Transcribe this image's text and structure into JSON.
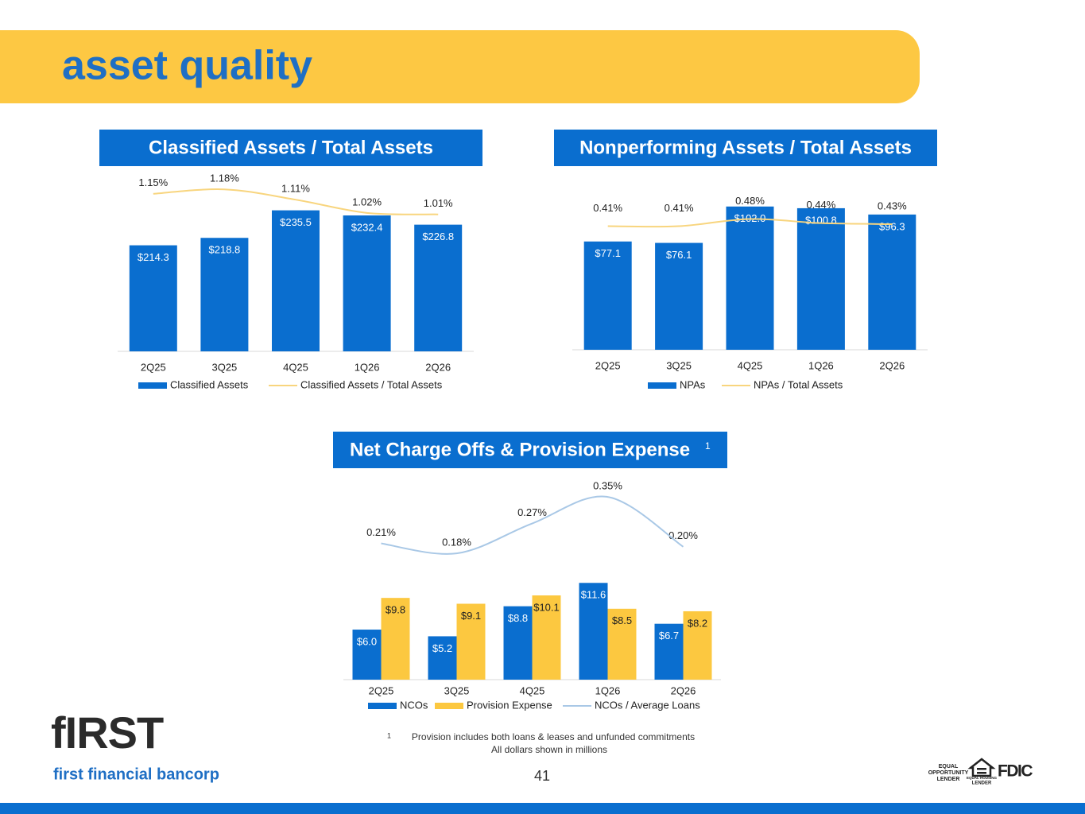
{
  "header": {
    "title": "asset quality"
  },
  "chart_data": [
    {
      "type": "combo",
      "title": "Classified Assets / Total Assets",
      "categories": [
        "2Q25",
        "3Q25",
        "4Q25",
        "1Q26",
        "2Q26"
      ],
      "ylim": [
        150,
        250
      ],
      "y2lim": [
        0.08,
        1.2
      ],
      "series": [
        {
          "name": "Classified Assets",
          "type": "bar",
          "color": "#0a6ecf",
          "values": [
            214.3,
            218.8,
            235.5,
            232.4,
            226.8
          ],
          "value_labels": [
            "$214.3",
            "$218.8",
            "$235.5",
            "$232.4",
            "$226.8"
          ]
        },
        {
          "name": "Classified Assets / Total Assets",
          "type": "line",
          "axis": "y2",
          "color": "#f8d57e",
          "values": [
            1.15,
            1.18,
            1.11,
            1.02,
            1.01
          ],
          "value_labels": [
            "1.15%",
            "1.18%",
            "1.11%",
            "1.02%",
            "1.01%"
          ]
        }
      ]
    },
    {
      "type": "combo",
      "title": "Nonperforming Assets / Total Assets",
      "categories": [
        "2Q25",
        "3Q25",
        "4Q25",
        "1Q26",
        "2Q26"
      ],
      "ylim": [
        0,
        120
      ],
      "y2lim": [
        -0.8,
        0.85
      ],
      "series": [
        {
          "name": "NPAs",
          "type": "bar",
          "color": "#0a6ecf",
          "values": [
            77.1,
            76.1,
            102.0,
            100.8,
            96.3
          ],
          "value_labels": [
            "$77.1",
            "$76.1",
            "$102.0",
            "$100.8",
            "$96.3"
          ]
        },
        {
          "name": "NPAs / Total Assets",
          "type": "line",
          "axis": "y2",
          "color": "#f8d57e",
          "values": [
            0.41,
            0.41,
            0.48,
            0.44,
            0.43
          ],
          "value_labels": [
            "0.41%",
            "0.41%",
            "0.48%",
            "0.44%",
            "0.43%"
          ]
        }
      ]
    },
    {
      "type": "combo",
      "title": "Net Charge Offs & Provision Expense",
      "title_note_marker": "1",
      "categories": [
        "2Q25",
        "3Q25",
        "4Q25",
        "1Q26",
        "2Q26"
      ],
      "ylim": [
        0,
        24.3
      ],
      "y2lim": [
        -0.2,
        0.41
      ],
      "series": [
        {
          "name": "NCOs",
          "type": "bar",
          "color": "#0a6ecf",
          "values": [
            6.0,
            5.2,
            8.8,
            11.6,
            6.7
          ],
          "value_labels": [
            "$6.0",
            "$5.2",
            "$8.8",
            "$11.6",
            "$6.7"
          ]
        },
        {
          "name": "Provision Expense",
          "type": "bar",
          "color": "#fcc840",
          "values": [
            9.8,
            9.1,
            10.1,
            8.5,
            8.2
          ],
          "value_labels": [
            "$9.8",
            "$9.1",
            "$10.1",
            "$8.5",
            "$8.2"
          ]
        },
        {
          "name": "NCOs / Average Loans",
          "type": "line",
          "axis": "y2",
          "color": "#a9c8e6",
          "values": [
            0.21,
            0.18,
            0.27,
            0.35,
            0.2
          ],
          "value_labels": [
            "0.21%",
            "0.18%",
            "0.27%",
            "0.35%",
            "0.20%"
          ]
        }
      ]
    }
  ],
  "footnote": {
    "marker": "1",
    "text": "Provision includes both loans & leases and unfunded commitments",
    "note": "All dollars shown in millions"
  },
  "page_number": "41",
  "logo": {
    "mark": "fIRST",
    "name": "first financial bancorp"
  },
  "badges": {
    "equal_opportunity": [
      "EQUAL",
      "OPPORTUNITY",
      "LENDER"
    ],
    "equal_housing": [
      "EQUAL HOUSING",
      "LENDER"
    ],
    "fdic": "FDIC"
  }
}
